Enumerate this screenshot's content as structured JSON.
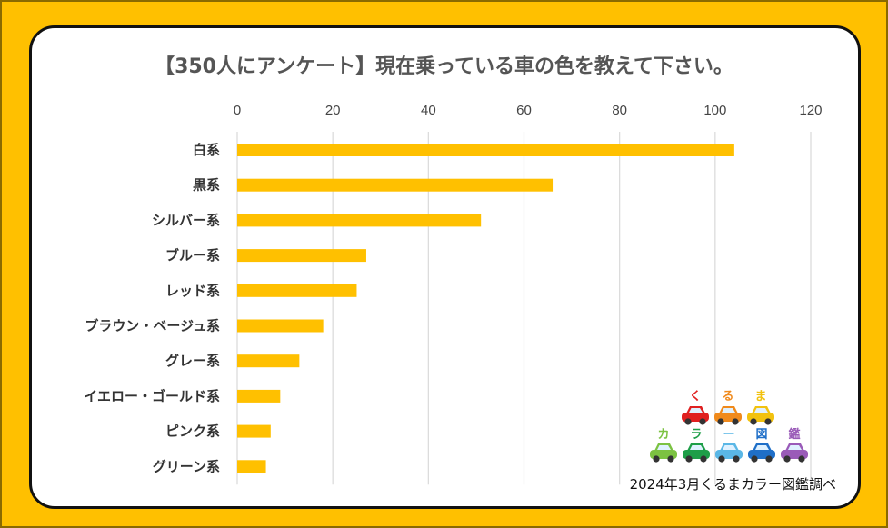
{
  "chart_data": {
    "type": "bar",
    "orientation": "horizontal",
    "title": "【350人にアンケート】現在乗っている車の色を教えて下さい。",
    "categories": [
      "白系",
      "黒系",
      "シルバー系",
      "ブルー系",
      "レッド系",
      "ブラウン・ベージュ系",
      "グレー系",
      "イエロー・ゴールド系",
      "ピンク系",
      "グリーン系"
    ],
    "values": [
      104,
      66,
      51,
      27,
      25,
      18,
      13,
      9,
      7,
      6
    ],
    "xlim": [
      0,
      120
    ],
    "xticks": [
      0,
      20,
      40,
      60,
      80,
      100,
      120
    ],
    "axis_position": "top",
    "grid": true,
    "bar_color": "#ffc000",
    "grid_color": "#d9d9d9"
  },
  "logo": {
    "row1_chars": [
      "く",
      "る",
      "ま"
    ],
    "row2_chars": [
      "カ",
      "ラ",
      "ー",
      "図",
      "鑑"
    ],
    "row1_colors": [
      "#e02020",
      "#f08a1c",
      "#f2c20f"
    ],
    "row2_colors": [
      "#7cc242",
      "#1e9e48",
      "#5ab7e6",
      "#1f6fc8",
      "#9a5bb8"
    ]
  },
  "source": "2024年3月くるまカラー図鑑調べ",
  "colors": {
    "frame": "#ffc000",
    "card": "#ffffff",
    "title_text": "#555555"
  }
}
